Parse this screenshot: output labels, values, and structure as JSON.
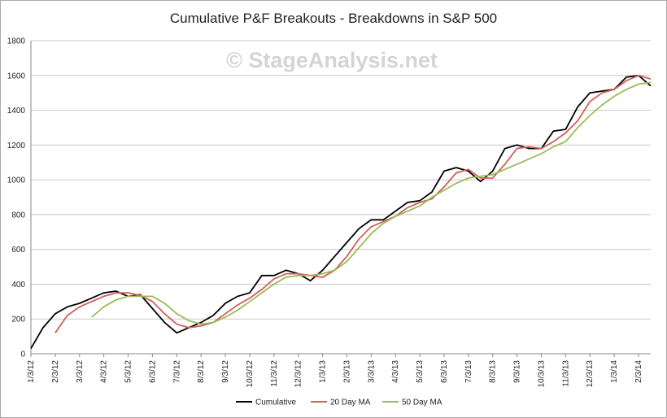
{
  "chart_data": {
    "type": "line",
    "title": "Cumulative P&F Breakouts - Breakdowns in S&P 500",
    "annotation": "© StageAnalysis.net",
    "categories": [
      "1/3/12",
      null,
      "2/3/12",
      null,
      "3/3/12",
      null,
      "4/3/12",
      null,
      "5/3/12",
      null,
      "6/3/12",
      null,
      "7/3/12",
      null,
      "8/3/12",
      null,
      "9/3/12",
      null,
      "10/3/12",
      null,
      "11/3/12",
      null,
      "12/3/12",
      null,
      "1/3/13",
      null,
      "2/3/13",
      null,
      "3/3/13",
      null,
      "4/3/13",
      null,
      "5/3/13",
      null,
      "6/3/13",
      null,
      "7/3/13",
      null,
      "8/3/13",
      null,
      "9/3/13",
      null,
      "10/3/13",
      null,
      "11/3/13",
      null,
      "12/3/13",
      null,
      "1/3/14",
      null,
      "2/3/14",
      null
    ],
    "series": [
      {
        "name": "Cumulative",
        "color": "#000000",
        "values": [
          30,
          150,
          230,
          270,
          290,
          320,
          350,
          360,
          330,
          340,
          260,
          180,
          120,
          150,
          180,
          220,
          290,
          330,
          350,
          450,
          450,
          480,
          460,
          420,
          480,
          560,
          640,
          720,
          770,
          770,
          820,
          870,
          880,
          930,
          1050,
          1070,
          1050,
          990,
          1050,
          1180,
          1200,
          1180,
          1180,
          1280,
          1290,
          1420,
          1500,
          1510,
          1520,
          1590,
          1600,
          1540
        ]
      },
      {
        "name": "20 Day MA",
        "color": "#d0605a",
        "values": [
          null,
          null,
          120,
          220,
          270,
          300,
          330,
          350,
          350,
          335,
          300,
          230,
          170,
          150,
          160,
          180,
          230,
          280,
          320,
          370,
          430,
          460,
          460,
          450,
          440,
          480,
          560,
          660,
          730,
          760,
          790,
          840,
          870,
          890,
          960,
          1040,
          1060,
          1010,
          1010,
          1090,
          1180,
          1190,
          1180,
          1220,
          1270,
          1340,
          1450,
          1500,
          1520,
          1570,
          1600,
          1580
        ]
      },
      {
        "name": "50 Day MA",
        "color": "#9bbb59",
        "values": [
          null,
          null,
          null,
          null,
          null,
          210,
          270,
          310,
          330,
          330,
          330,
          290,
          230,
          190,
          170,
          180,
          210,
          250,
          300,
          350,
          400,
          440,
          450,
          450,
          460,
          480,
          530,
          610,
          690,
          750,
          790,
          820,
          850,
          900,
          940,
          980,
          1010,
          1020,
          1030,
          1060,
          1090,
          1120,
          1150,
          1190,
          1220,
          1300,
          1370,
          1430,
          1480,
          1520,
          1550,
          1560
        ]
      }
    ],
    "ylim": [
      0,
      1800
    ],
    "yticks": [
      0,
      200,
      400,
      600,
      800,
      1000,
      1200,
      1400,
      1600,
      1800
    ],
    "grid": true,
    "legend": "bottom"
  }
}
